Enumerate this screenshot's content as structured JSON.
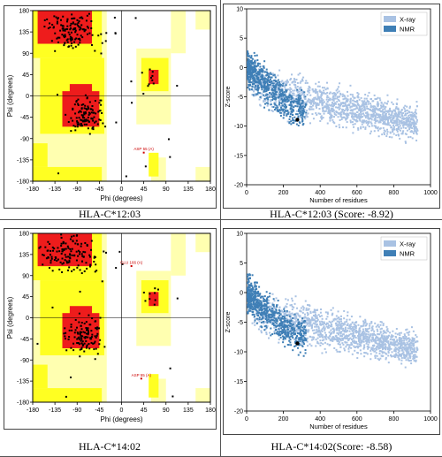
{
  "captions": {
    "tl": "HLA-C*12:03",
    "tr": "HLA-C*12:03 (Score: -8.92)",
    "bl": "HLA-C*14:02",
    "br": "HLA-C*14:02(Score: -8.58)"
  },
  "colors": {
    "core": "#ee1c1c",
    "allowed": "#ffff22",
    "generous": "#ffffb0",
    "xray": "#a9c2e3",
    "nmr": "#3f7fb6",
    "point": "#000000"
  },
  "chart_data": [
    {
      "type": "scatter",
      "title": "",
      "xlabel": "Phi (degrees)",
      "ylabel": "Psi (degrees)",
      "xlim": [
        -180,
        180
      ],
      "ylim": [
        -180,
        180
      ],
      "xticks": [
        "-180",
        "-135",
        "-90",
        "-45",
        "0",
        "45",
        "90",
        "135",
        "180"
      ],
      "yticks": [
        "180",
        "135",
        "90",
        "45",
        "0",
        "-45",
        "-90",
        "-135",
        "-180"
      ],
      "annotations": [
        "ASP 55 (A)"
      ]
    },
    {
      "type": "scatter",
      "title": "",
      "xlabel": "Number of residues",
      "ylabel": "Z-score",
      "xlim": [
        0,
        1000
      ],
      "ylim": [
        -20,
        10
      ],
      "xticks": [
        "0",
        "200",
        "400",
        "600",
        "800",
        "1000"
      ],
      "yticks": [
        "10",
        "5",
        "0",
        "-5",
        "-10",
        "-15",
        "-20"
      ],
      "legend": [
        "X-ray",
        "NMR"
      ],
      "legend_position": "top-right",
      "highlight": {
        "x": 276,
        "y": -8.92
      }
    },
    {
      "type": "scatter",
      "title": "",
      "xlabel": "Phi (degrees)",
      "ylabel": "Psi (degrees)",
      "xlim": [
        -180,
        180
      ],
      "ylim": [
        -180,
        180
      ],
      "xticks": [
        "-180",
        "-135",
        "-90",
        "-45",
        "0",
        "45",
        "90",
        "135",
        "180"
      ],
      "yticks": [
        "180",
        "135",
        "90",
        "45",
        "0",
        "-45",
        "-90",
        "-135",
        "-180"
      ],
      "annotations": [
        "GLU 166 (A)",
        "ASP 55 (A)"
      ]
    },
    {
      "type": "scatter",
      "title": "",
      "xlabel": "Number of residues",
      "ylabel": "Z-score",
      "xlim": [
        0,
        1000
      ],
      "ylim": [
        -20,
        10
      ],
      "xticks": [
        "0",
        "200",
        "400",
        "600",
        "800",
        "1000"
      ],
      "yticks": [
        "10",
        "5",
        "0",
        "-5",
        "-10",
        "-15",
        "-20"
      ],
      "legend": [
        "X-ray",
        "NMR"
      ],
      "legend_position": "top-right",
      "highlight": {
        "x": 276,
        "y": -8.58
      }
    }
  ]
}
